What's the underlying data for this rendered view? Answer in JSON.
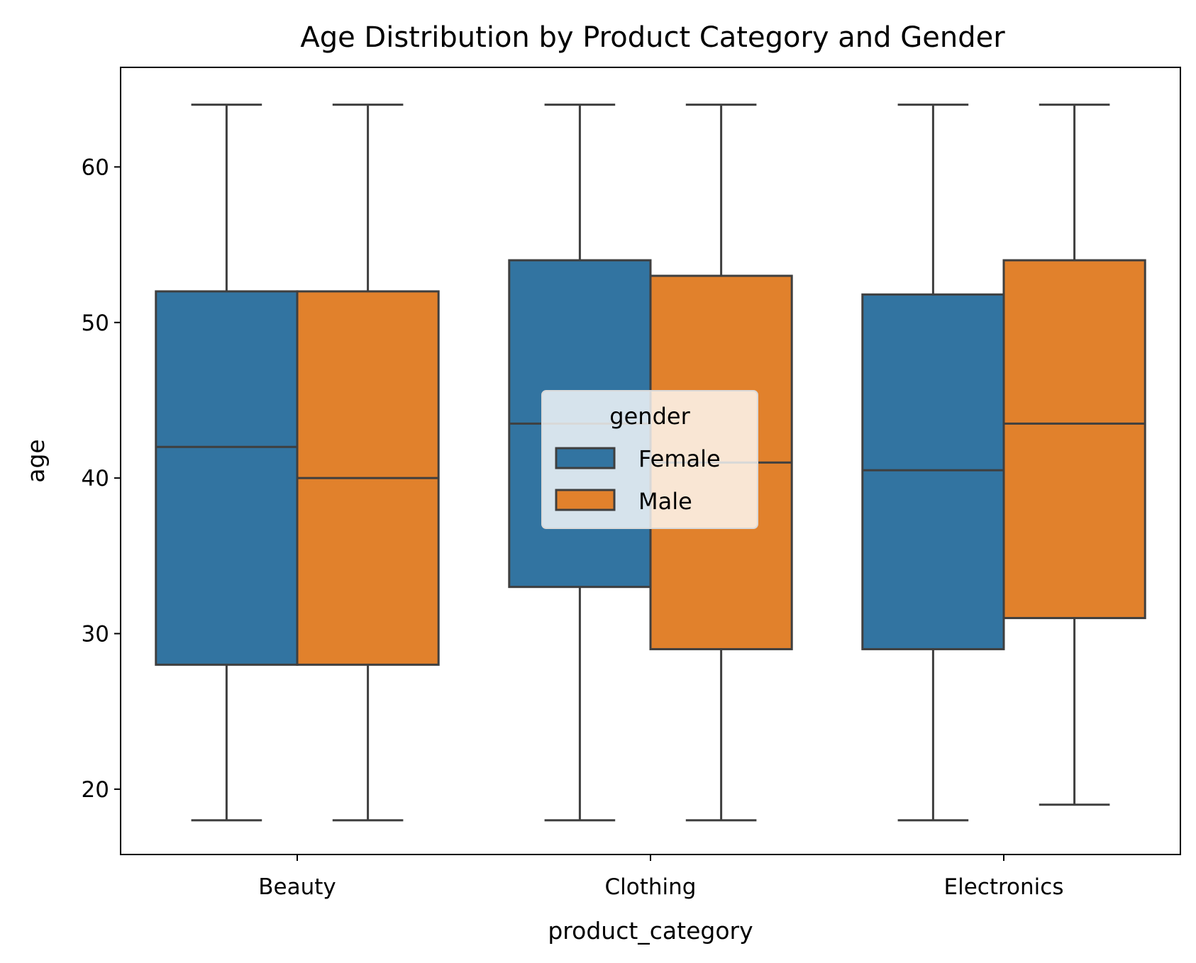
{
  "chart_data": {
    "type": "boxplot",
    "title": "Age Distribution by Product Category and Gender",
    "xlabel": "product_category",
    "ylabel": "age",
    "categories": [
      "Beauty",
      "Clothing",
      "Electronics"
    ],
    "ylim": [
      15.8,
      66.4
    ],
    "yticks": [
      20,
      30,
      40,
      50,
      60
    ],
    "grid": false,
    "legend": {
      "title": "gender",
      "placement": "center",
      "entries": [
        "Female",
        "Male"
      ]
    },
    "series": [
      {
        "name": "Female",
        "color": "#3274a1",
        "boxes": [
          {
            "whislo": 18,
            "q1": 28,
            "med": 42,
            "q3": 52,
            "whishi": 64
          },
          {
            "whislo": 18,
            "q1": 33,
            "med": 43.5,
            "q3": 54,
            "whishi": 64
          },
          {
            "whislo": 18,
            "q1": 29,
            "med": 40.5,
            "q3": 51.8,
            "whishi": 64
          }
        ]
      },
      {
        "name": "Male",
        "color": "#e1812c",
        "boxes": [
          {
            "whislo": 18,
            "q1": 28,
            "med": 40,
            "q3": 52,
            "whishi": 64
          },
          {
            "whislo": 18,
            "q1": 29,
            "med": 41,
            "q3": 53,
            "whishi": 64
          },
          {
            "whislo": 19,
            "q1": 31,
            "med": 43.5,
            "q3": 54,
            "whishi": 64
          }
        ]
      }
    ],
    "edge_color": "#3f3f3f"
  }
}
